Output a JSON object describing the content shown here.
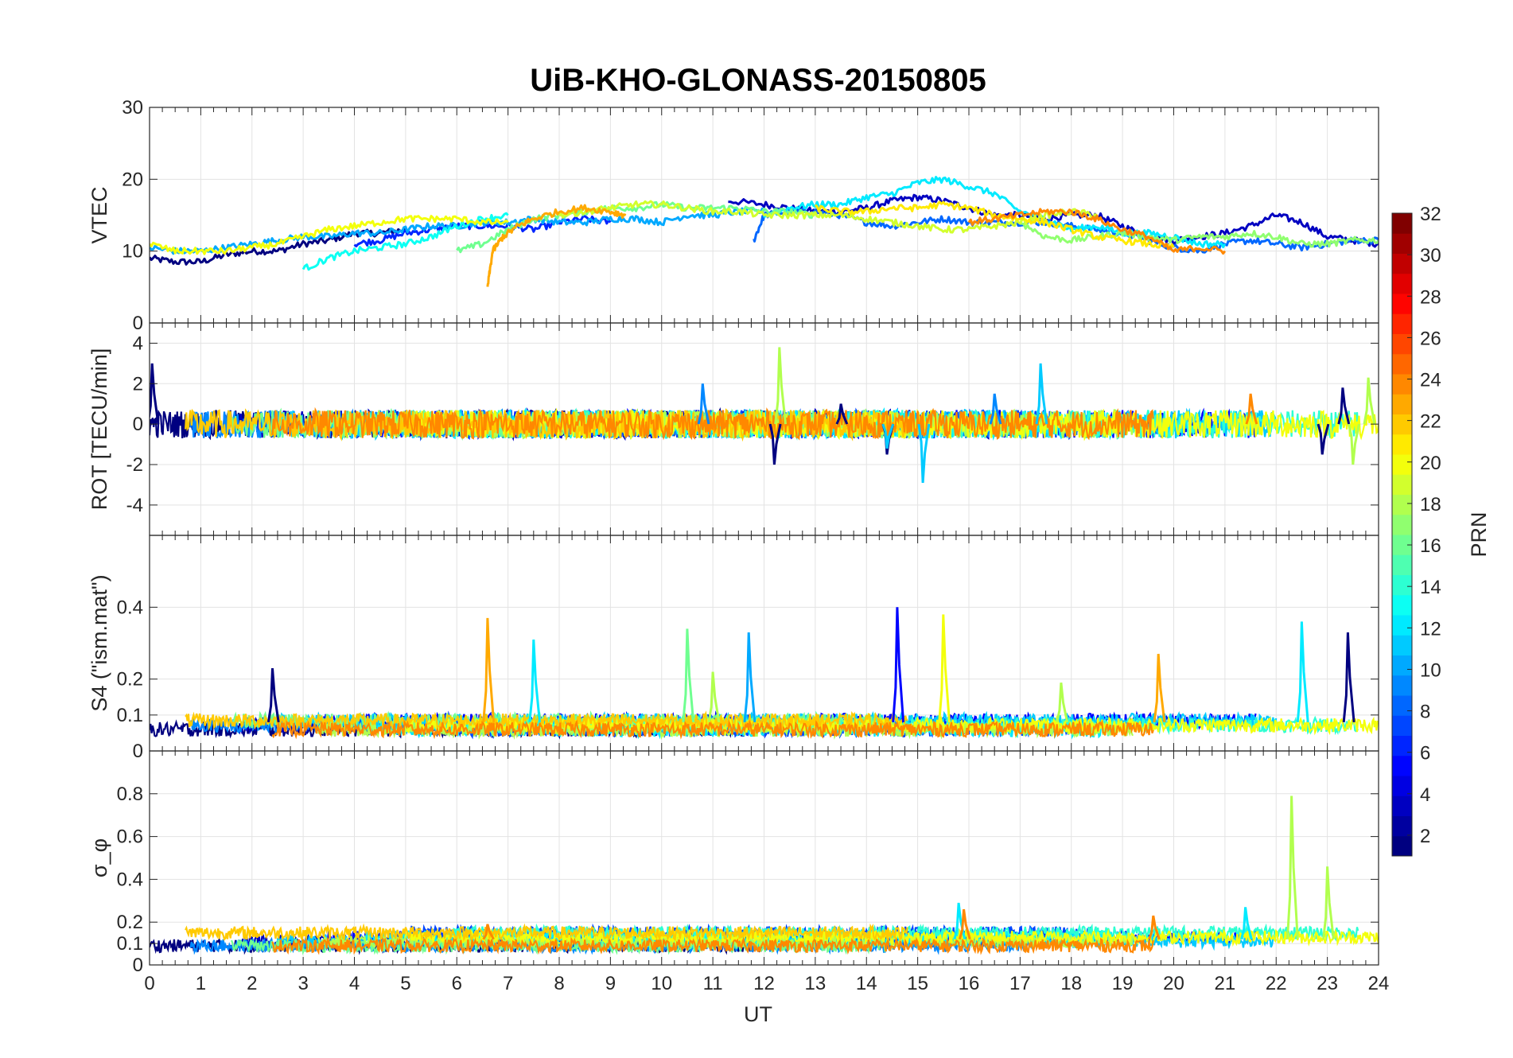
{
  "chart_data": {
    "type": "line",
    "title": "UiB-KHO-GLONASS-20150805",
    "xlabel": "UT",
    "x_ticks": [
      "0",
      "1",
      "2",
      "3",
      "4",
      "5",
      "6",
      "7",
      "8",
      "9",
      "10",
      "11",
      "12",
      "13",
      "14",
      "15",
      "16",
      "17",
      "18",
      "19",
      "20",
      "21",
      "22",
      "23",
      "24"
    ],
    "xlim": [
      0,
      24
    ],
    "grid": true,
    "colorbar": {
      "label": "PRN",
      "lim": [
        1,
        32
      ],
      "ticks": [
        "2",
        "4",
        "6",
        "8",
        "10",
        "12",
        "14",
        "16",
        "18",
        "20",
        "22",
        "24",
        "26",
        "28",
        "30",
        "32"
      ],
      "colormap": "jet"
    },
    "panels": [
      {
        "ylabel": "VTEC",
        "ylim": [
          0,
          30
        ],
        "y_ticks": [
          "0",
          "10",
          "20",
          "30"
        ],
        "series": [
          {
            "prn": 1,
            "x": [
              0,
              0.5,
              1,
              1.5,
              2,
              2.5,
              3,
              3.5,
              4,
              4.5,
              5
            ],
            "y": [
              9,
              8.5,
              8.5,
              9.5,
              10,
              10,
              11,
              11.5,
              12.5,
              12.5,
              13
            ]
          },
          {
            "prn": 3,
            "x": [
              11.3,
              12,
              12.5,
              13,
              13.5,
              14,
              14.5,
              15,
              15.5,
              16,
              16.5,
              17,
              17.5,
              18,
              18.5,
              19,
              19.5,
              20,
              20.5,
              21,
              21.5,
              22,
              22.5,
              23,
              23.5,
              24
            ],
            "y": [
              17,
              16.5,
              16,
              15.5,
              15.5,
              16,
              17,
              17.5,
              17,
              16,
              15,
              15,
              14.5,
              15,
              15,
              13.5,
              12,
              11.5,
              12,
              12.5,
              13.5,
              15,
              14,
              12,
              11.5,
              11
            ]
          },
          {
            "prn": 6,
            "x": [
              4,
              4.5,
              5,
              5.5,
              6,
              6.5,
              7,
              7.5,
              8,
              8.5,
              9
            ],
            "y": [
              11,
              11.5,
              12.5,
              13,
              13.5,
              13.5,
              13.5,
              13,
              14,
              14.5,
              14
            ]
          },
          {
            "prn": 8,
            "x": [
              11.8,
              12,
              12.5,
              13,
              13.5,
              14,
              14.5,
              15,
              15.5,
              16,
              16.5,
              17,
              17.5,
              18,
              18.5,
              19,
              19.5,
              20,
              20.5,
              21,
              21.5,
              22,
              22.5,
              23,
              23.5,
              24
            ],
            "y": [
              11.5,
              15,
              15.5,
              15.5,
              15,
              14,
              13.5,
              14,
              14.5,
              14,
              14,
              14,
              14,
              13.5,
              13,
              12.5,
              11.5,
              10.5,
              10,
              11,
              11.5,
              11,
              10.5,
              11,
              11.5,
              11.5
            ]
          },
          {
            "prn": 10,
            "x": [
              0,
              0.5,
              1,
              1.5,
              2,
              2.5,
              3,
              3.5,
              4,
              4.5,
              5,
              5.5,
              6,
              6.5,
              7,
              7.5,
              8,
              8.5,
              9,
              9.5,
              10,
              10.5,
              11,
              11.5,
              12
            ],
            "y": [
              10.5,
              10,
              10,
              10.5,
              11,
              11.5,
              12,
              12,
              12.5,
              12.5,
              13,
              13.5,
              13.5,
              14,
              14,
              14.5,
              14,
              14,
              14.5,
              14.5,
              14,
              15,
              15,
              15.5,
              15.5
            ]
          },
          {
            "prn": 12,
            "x": [
              12,
              12.5,
              13,
              13.5,
              14,
              14.5,
              15,
              15.5,
              16,
              16.5,
              17,
              17.5,
              18,
              18.5,
              19,
              19.5,
              20,
              20.5,
              21
            ],
            "y": [
              15,
              16,
              16.5,
              16.5,
              17.5,
              18,
              19.5,
              20,
              19,
              18,
              15.5,
              14.5,
              13,
              13.5,
              12.5,
              12.5,
              12,
              11,
              11
            ]
          },
          {
            "prn": 13,
            "x": [
              3,
              3.5,
              4,
              4.5,
              5,
              5.5,
              6,
              6.5,
              7
            ],
            "y": [
              7.5,
              9,
              10,
              10.5,
              11,
              12,
              13.5,
              14.5,
              15
            ]
          },
          {
            "prn": 16,
            "x": [
              6,
              6.5,
              7,
              7.5,
              8,
              8.5,
              9,
              9.5,
              10,
              10.5,
              11,
              11.5,
              12,
              12.5,
              13
            ],
            "y": [
              10,
              11,
              13,
              14.5,
              15,
              15.5,
              16,
              16,
              16.5,
              16,
              16,
              16,
              15.5,
              15.5,
              15
            ]
          },
          {
            "prn": 17,
            "x": [
              17,
              17.5,
              18,
              18.5,
              19,
              19.5,
              20,
              20.5,
              21,
              21.5,
              22,
              22.5,
              23,
              23.5,
              24
            ],
            "y": [
              14,
              12,
              11.5,
              12,
              12.5,
              12,
              11.5,
              12,
              12,
              12.5,
              12,
              11,
              11,
              11.5,
              11.5
            ]
          },
          {
            "prn": 19,
            "x": [
              8,
              8.5,
              9,
              9.5,
              10,
              10.5,
              11,
              11.5,
              12,
              12.5,
              13,
              13.5,
              14,
              14.5,
              15,
              15.5,
              16,
              16.5,
              17,
              17.5,
              18,
              18.5
            ],
            "y": [
              15,
              15.5,
              16,
              16.5,
              16.5,
              16,
              15.5,
              15.5,
              15,
              15,
              15,
              15,
              14.5,
              14,
              13.5,
              13,
              13,
              13.5,
              14,
              15,
              15.5,
              15
            ]
          },
          {
            "prn": 20,
            "x": [
              0,
              0.5,
              1,
              1.5,
              2,
              2.5,
              3,
              3.5,
              4,
              4.5,
              5,
              5.5,
              6,
              6.5,
              7
            ],
            "y": [
              11,
              10,
              10,
              10,
              10.5,
              11,
              12,
              13,
              13.5,
              14,
              14.5,
              14.5,
              14.5,
              14,
              14
            ]
          },
          {
            "prn": 21,
            "x": [
              13,
              13.5,
              14,
              14.5,
              15,
              15.5,
              16,
              16.5,
              17,
              17.5,
              18,
              18.5,
              19,
              19.5,
              20
            ],
            "y": [
              16,
              15.5,
              15.5,
              16,
              16,
              16.5,
              16,
              15,
              14.5,
              14,
              13,
              12,
              11.5,
              11,
              10.5
            ]
          },
          {
            "prn": 23,
            "x": [
              6.6,
              6.7,
              6.9,
              7.2,
              7.5,
              8,
              8.5,
              9,
              9.3
            ],
            "y": [
              5,
              10,
              12,
              13.5,
              14.5,
              15.5,
              16,
              15.5,
              15
            ]
          },
          {
            "prn": 24,
            "x": [
              16,
              16.5,
              17,
              17.5,
              18,
              18.5,
              19,
              19.5,
              20,
              20.5,
              21
            ],
            "y": [
              14,
              14.5,
              15,
              15.5,
              15.5,
              14.5,
              13,
              12,
              10,
              10.5,
              10
            ]
          }
        ]
      },
      {
        "ylabel": "ROT [TECU/min]",
        "ylim": [
          -5.5,
          5
        ],
        "y_ticks": [
          "-4",
          "-2",
          "0",
          "2",
          "4"
        ],
        "spikes": [
          {
            "prn": 1,
            "x": [
              0.05,
              12.2,
              13.5,
              14.4,
              22.9,
              23.3
            ],
            "y": [
              3.0,
              -2.0,
              1.0,
              -1.5,
              -1.5,
              1.8
            ]
          },
          {
            "prn": 9,
            "x": [
              10.8,
              16.5
            ],
            "y": [
              2.0,
              1.5
            ]
          },
          {
            "prn": 11,
            "x": [
              14.4,
              15.1,
              17.4
            ],
            "y": [
              -1.2,
              -2.9,
              3.0
            ]
          },
          {
            "prn": 18,
            "x": [
              12.3,
              23.5,
              23.8
            ],
            "y": [
              3.8,
              -2.0,
              2.3
            ]
          },
          {
            "prn": 24,
            "x": [
              21.5
            ],
            "y": [
              1.5
            ]
          }
        ]
      },
      {
        "ylabel": "S4 (\"ism.mat\")",
        "ylim": [
          0,
          0.6
        ],
        "y_ticks": [
          "0",
          "0.1",
          "0.2",
          "0.4"
        ],
        "spikes": [
          {
            "prn": 1,
            "x": [
              2.4,
              23.4
            ],
            "y": [
              0.23,
              0.33
            ]
          },
          {
            "prn": 5,
            "x": [
              14.6
            ],
            "y": [
              0.4
            ]
          },
          {
            "prn": 10,
            "x": [
              11.7
            ],
            "y": [
              0.33
            ]
          },
          {
            "prn": 12,
            "x": [
              7.5,
              22.5
            ],
            "y": [
              0.31,
              0.36
            ]
          },
          {
            "prn": 16,
            "x": [
              10.5
            ],
            "y": [
              0.34
            ]
          },
          {
            "prn": 18,
            "x": [
              11.0,
              17.8
            ],
            "y": [
              0.22,
              0.19
            ]
          },
          {
            "prn": 20,
            "x": [
              15.5
            ],
            "y": [
              0.38
            ]
          },
          {
            "prn": 23,
            "x": [
              6.6,
              19.7
            ],
            "y": [
              0.37,
              0.27
            ]
          }
        ]
      },
      {
        "ylabel": "σ_φ",
        "ylim": [
          0,
          1
        ],
        "y_ticks": [
          "0",
          "0.1",
          "0.2",
          "0.4",
          "0.6",
          "0.8"
        ],
        "spikes": [
          {
            "prn": 12,
            "x": [
              15.8,
              21.4
            ],
            "y": [
              0.29,
              0.27
            ]
          },
          {
            "prn": 18,
            "x": [
              22.3,
              23.0
            ],
            "y": [
              0.79,
              0.46
            ]
          },
          {
            "prn": 24,
            "x": [
              6.6,
              15.9,
              19.6
            ],
            "y": [
              0.19,
              0.26,
              0.23
            ]
          }
        ]
      }
    ]
  }
}
